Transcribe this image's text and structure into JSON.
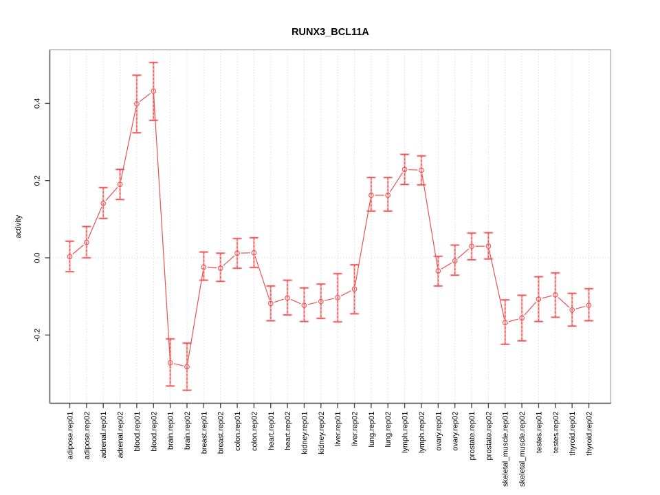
{
  "title": "RUNX3_BCL11A",
  "chart_data": {
    "type": "line",
    "title": "RUNX3_BCL11A",
    "xlabel": "",
    "ylabel": "activity",
    "legend": "none",
    "grid": "vertical dotted gridlines at each category; dotted horizontal line at y=0",
    "point_style": "open circles with two-layer error bars (wide light pink, narrow dashed red)",
    "yticks": [
      -0.2,
      0.0,
      0.2,
      0.4
    ],
    "ytick_labels": [
      "-0.2",
      "0.0",
      "0.2",
      "0.4"
    ],
    "ylim": [
      -0.38,
      0.54
    ],
    "categories": [
      "adipose.rep01",
      "adipose.rep02",
      "adrenal.rep01",
      "adrenal.rep02",
      "blood.rep01",
      "blood.rep02",
      "brain.rep01",
      "brain.rep02",
      "breast.rep01",
      "breast.rep02",
      "colon.rep01",
      "colon.rep02",
      "heart.rep01",
      "heart.rep02",
      "kidney.rep01",
      "kidney.rep02",
      "liver.rep01",
      "liver.rep02",
      "lung.rep01",
      "lung.rep02",
      "lymph.rep01",
      "lymph.rep02",
      "ovary.rep01",
      "ovary.rep02",
      "prostate.rep01",
      "prostate.rep02",
      "skeletal_muscle.rep01",
      "skeletal_muscle.rep02",
      "testes.rep01",
      "testes.rep02",
      "thyroid.rep01",
      "thyroid.rep02"
    ],
    "series": [
      {
        "name": "activity",
        "values": [
          0.003,
          0.04,
          0.141,
          0.19,
          0.399,
          0.432,
          -0.272,
          -0.282,
          -0.024,
          -0.027,
          0.012,
          0.013,
          -0.118,
          -0.104,
          -0.123,
          -0.113,
          -0.103,
          -0.081,
          0.162,
          0.162,
          0.229,
          0.227,
          -0.034,
          -0.008,
          0.03,
          0.03,
          -0.168,
          -0.156,
          -0.107,
          -0.096,
          -0.135,
          -0.123
        ],
        "err_lo": [
          -0.036,
          0.0,
          0.102,
          0.151,
          0.324,
          0.356,
          -0.332,
          -0.343,
          -0.058,
          -0.061,
          -0.027,
          -0.025,
          -0.163,
          -0.148,
          -0.165,
          -0.157,
          -0.166,
          -0.145,
          0.121,
          0.121,
          0.19,
          0.189,
          -0.073,
          -0.045,
          -0.005,
          -0.003,
          -0.224,
          -0.215,
          -0.165,
          -0.154,
          -0.177,
          -0.163
        ],
        "err_hi": [
          0.043,
          0.081,
          0.182,
          0.229,
          0.473,
          0.506,
          -0.21,
          -0.221,
          0.015,
          0.012,
          0.05,
          0.052,
          -0.073,
          -0.058,
          -0.078,
          -0.068,
          -0.041,
          -0.018,
          0.208,
          0.208,
          0.268,
          0.264,
          0.004,
          0.033,
          0.064,
          0.065,
          -0.109,
          -0.097,
          -0.049,
          -0.039,
          -0.092,
          -0.08
        ]
      }
    ],
    "colors": {
      "line": "#ee5050",
      "point": "#ee5050",
      "errorbar_inner": "#ee5050",
      "errorbar_outer": "#f7abab",
      "gridline": "#dcdcdc",
      "zero_line": "#d8d8d8",
      "frame": "#9b9b9b",
      "axis": "#4a4a4a",
      "text": "#000000"
    }
  }
}
